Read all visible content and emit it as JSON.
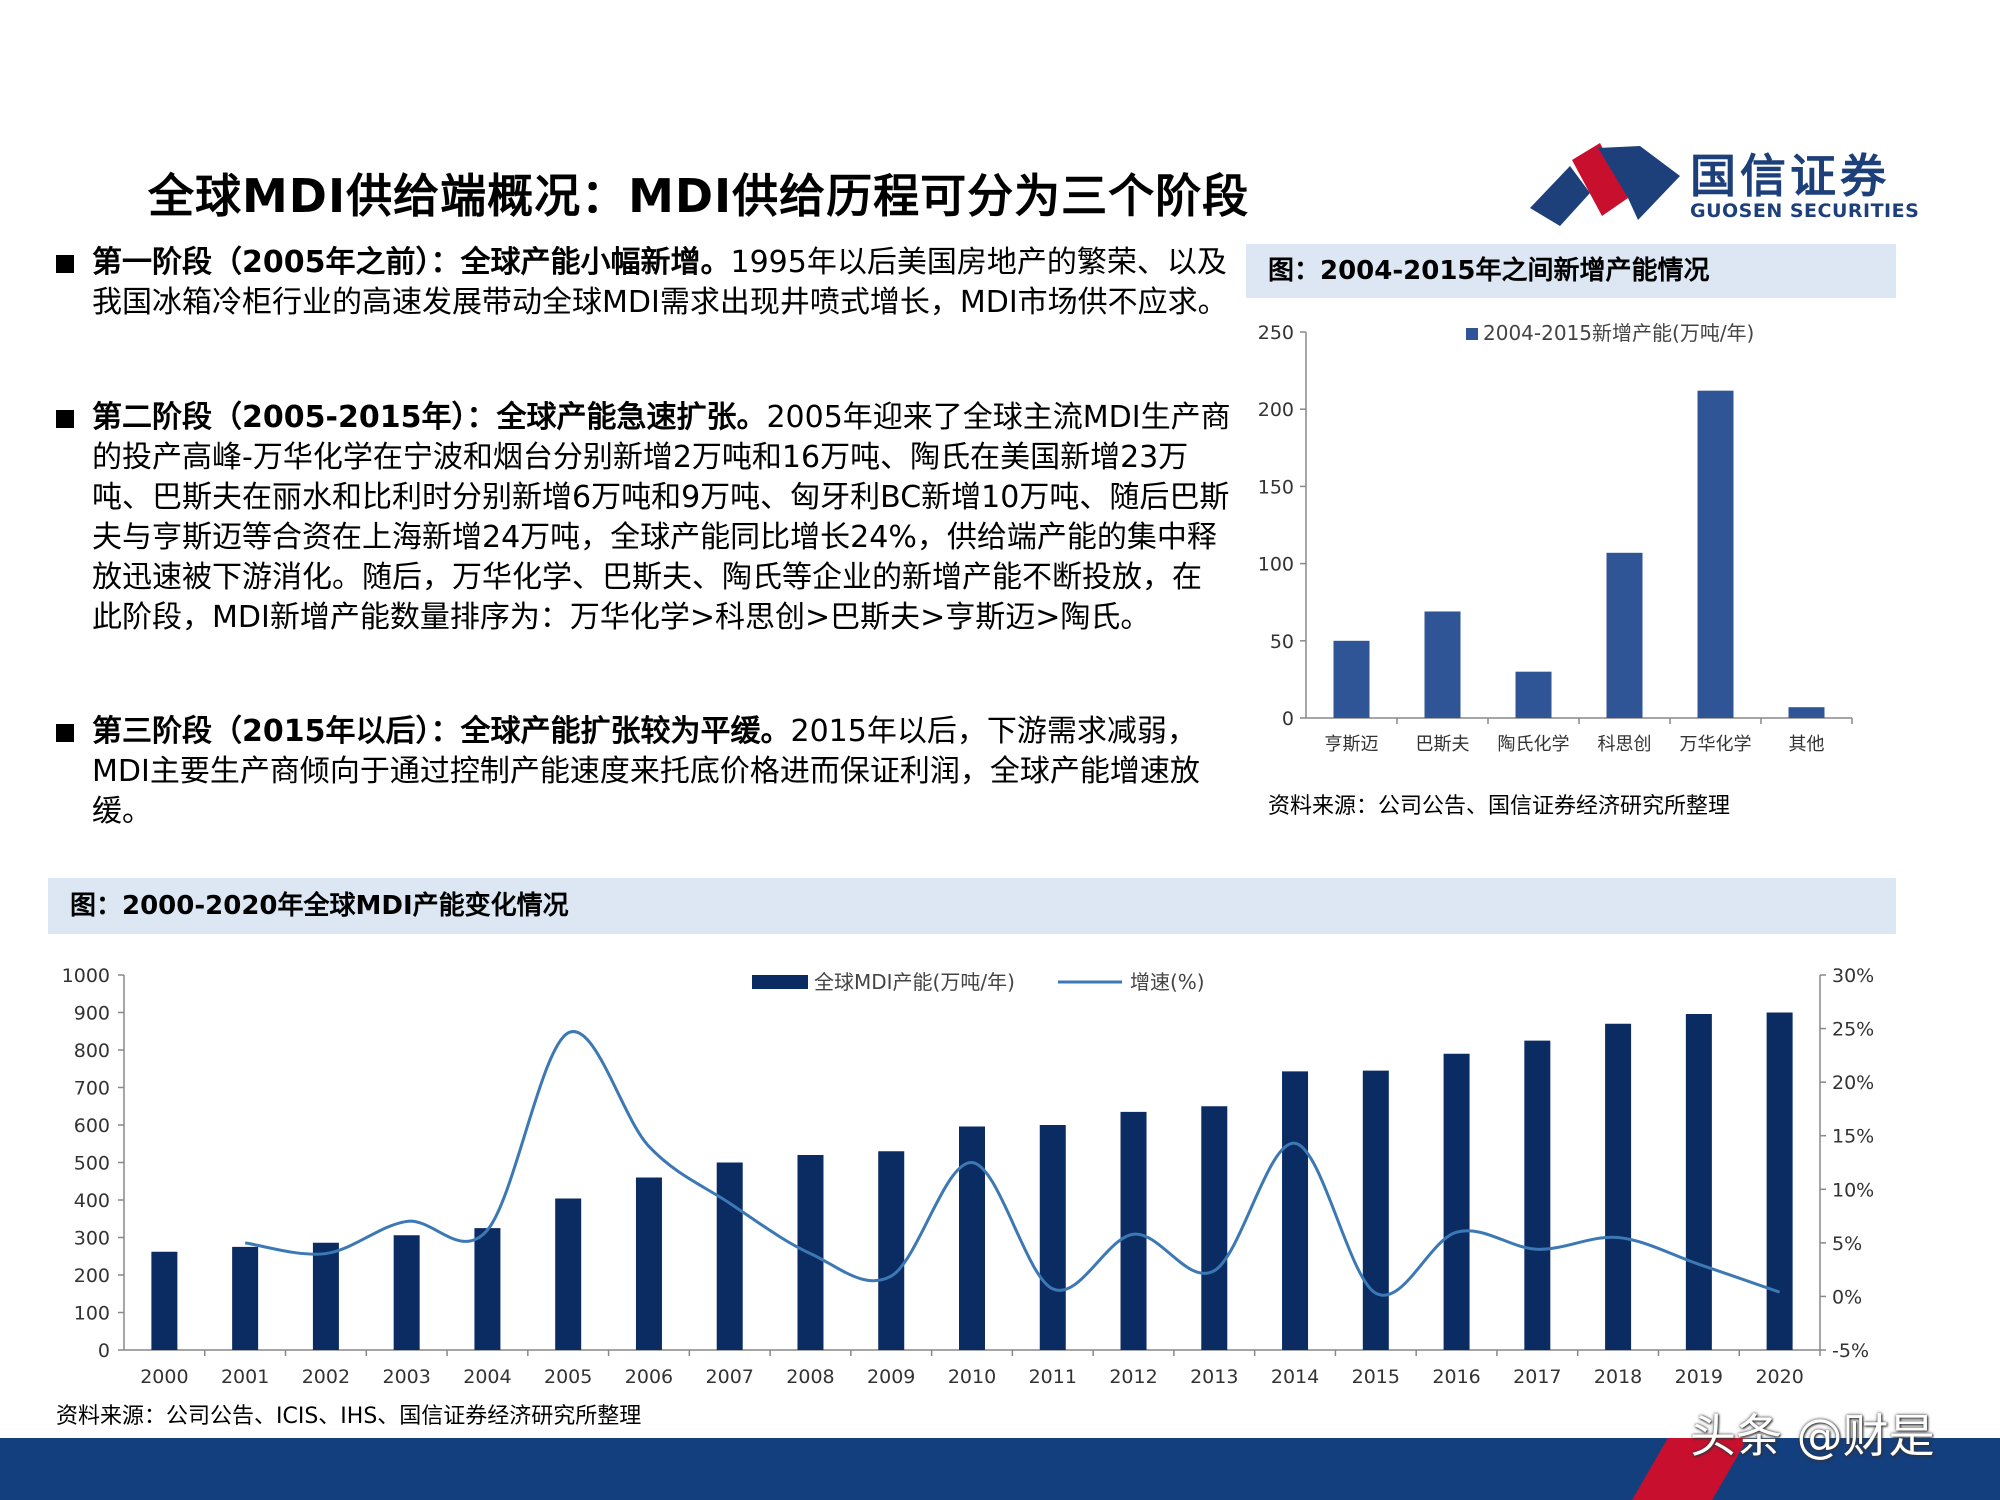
{
  "title": "全球MDI供给端概况：MDI供给历程可分为三个阶段",
  "logo": {
    "cn": "国信证券",
    "en": "GUOSEN SECURITIES",
    "colors": {
      "blue": "#1d3f7a",
      "red": "#c8102e"
    }
  },
  "paragraphs": [
    {
      "bold": "第一阶段（2005年之前）：全球产能小幅新增。",
      "text": "1995年以后美国房地产的繁荣、以及我国冰箱冷柜行业的高速发展带动全球MDI需求出现井喷式增长，MDI市场供不应求。"
    },
    {
      "bold": "第二阶段（2005-2015年）：全球产能急速扩张。",
      "text": "2005年迎来了全球主流MDI生产商的投产高峰-万华化学在宁波和烟台分别新增2万吨和16万吨、陶氏在美国新增23万吨、巴斯夫在丽水和比利时分别新增6万吨和9万吨、匈牙利BC新增10万吨、随后巴斯夫与亨斯迈等合资在上海新增24万吨，全球产能同比增长24%，供给端产能的集中释放迅速被下游消化。随后，万华化学、巴斯夫、陶氏等企业的新增产能不断投放，在此阶段，MDI新增产能数量排序为：万华化学>科思创>巴斯夫>亨斯迈>陶氏。"
    },
    {
      "bold": "第三阶段（2015年以后）：全球产能扩张较为平缓。",
      "text": "2015年以后，下游需求减弱，MDI主要生产商倾向于通过控制产能速度来托底价格进而保证利润，全球产能增速放缓。"
    }
  ],
  "chart1": {
    "caption": "图：2004-2015年之间新增产能情况",
    "source": "资料来源：公司公告、国信证券经济研究所整理"
  },
  "chart2": {
    "caption": "图：2000-2020年全球MDI产能变化情况",
    "source": "资料来源：公司公告、ICIS、IHS、国信证券经济研究所整理"
  },
  "watermark": "头条 @财是",
  "colors": {
    "bar1": "#2f5597",
    "bar2": "#0b2c63",
    "line": "#3c78b4",
    "caption_bg": "#dce7f3",
    "footer": "#143f7f"
  },
  "chart_data": [
    {
      "type": "bar",
      "categories": [
        "亨斯迈",
        "巴斯夫",
        "陶氏化学",
        "科思创",
        "万华化学",
        "其他"
      ],
      "series": [
        {
          "name": "2004-2015新增产能(万吨/年)",
          "values": [
            50,
            69,
            30,
            107,
            212,
            7
          ]
        }
      ],
      "ylim": [
        0,
        250
      ],
      "yticks": [
        "0",
        "50",
        "100",
        "150",
        "200",
        "250"
      ],
      "legend": "top"
    },
    {
      "type": "bar+line",
      "categories": [
        "2000",
        "2001",
        "2002",
        "2003",
        "2004",
        "2005",
        "2006",
        "2007",
        "2008",
        "2009",
        "2010",
        "2011",
        "2012",
        "2013",
        "2014",
        "2015",
        "2016",
        "2017",
        "2018",
        "2019",
        "2020"
      ],
      "series": [
        {
          "name": "全球MDI产能(万吨/年)",
          "axis": "left",
          "values": [
            262,
            275,
            286,
            306,
            325,
            404,
            460,
            500,
            520,
            530,
            596,
            600,
            635,
            650,
            743,
            745,
            790,
            825,
            870,
            896,
            900
          ]
        },
        {
          "name": "增速(%)",
          "axis": "right",
          "values": [
            null,
            5.0,
            4.0,
            7.0,
            6.2,
            24.6,
            14.0,
            8.7,
            4.0,
            1.9,
            12.5,
            0.7,
            5.8,
            2.4,
            14.3,
            0.3,
            6.0,
            4.4,
            5.5,
            3.0,
            0.4
          ]
        }
      ],
      "ylim": [
        0,
        1000
      ],
      "yticks": [
        "0",
        "100",
        "200",
        "300",
        "400",
        "500",
        "600",
        "700",
        "800",
        "900",
        "1000"
      ],
      "y2lim": [
        -5,
        30
      ],
      "y2ticks": [
        "-5%",
        "0%",
        "5%",
        "10%",
        "15%",
        "20%",
        "25%",
        "30%"
      ],
      "legend": "top"
    }
  ]
}
